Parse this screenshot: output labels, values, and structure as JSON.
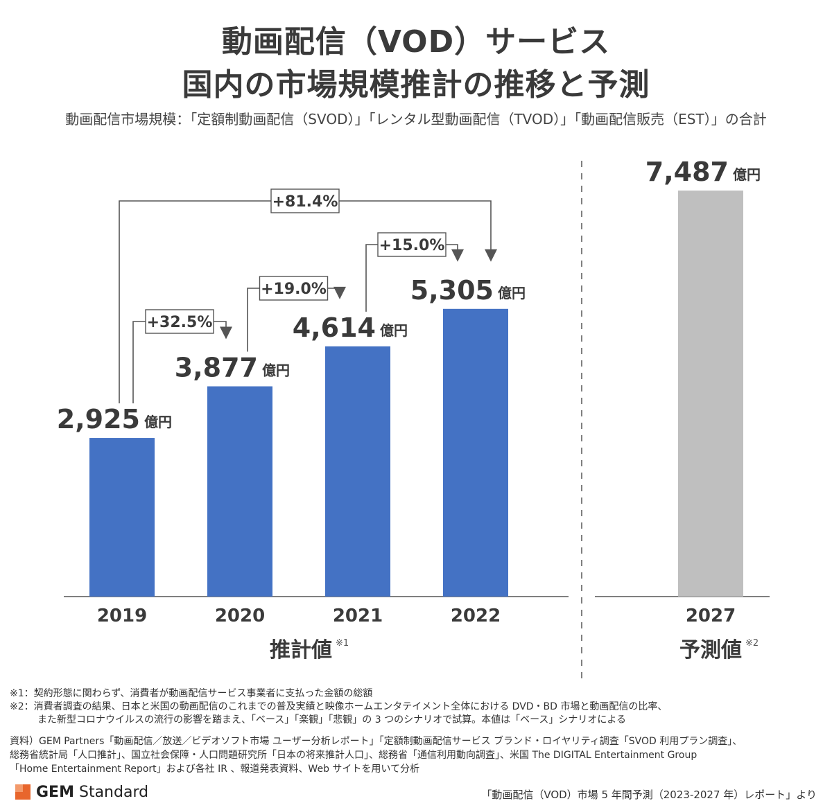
{
  "title_line1": "動画配信（VOD）サービス",
  "title_line2": "国内の市場規模推計の推移と予測",
  "subtitle": "動画配信市場規模：「定額制動画配信（SVOD）」「レンタル型動画配信（TVOD）」「動画配信販売（EST）」の合計",
  "chart_data": {
    "type": "bar",
    "categories": [
      "2019",
      "2020",
      "2021",
      "2022",
      "2027"
    ],
    "values": [
      2925,
      3877,
      4614,
      5305,
      7487
    ],
    "value_labels": [
      "2,925",
      "3,877",
      "4,614",
      "5,305",
      "7,487"
    ],
    "unit": "億円",
    "bar_colors": [
      "#4472c4",
      "#4472c4",
      "#4472c4",
      "#4472c4",
      "#bfbfbf"
    ],
    "growth_labels": [
      {
        "from": "2019",
        "to": "2020",
        "label": "+32.5%"
      },
      {
        "from": "2020",
        "to": "2021",
        "label": "+19.0%"
      },
      {
        "from": "2021",
        "to": "2022",
        "label": "+15.0%"
      },
      {
        "from": "2019",
        "to": "2022",
        "label": "+81.4%"
      }
    ],
    "group_labels": [
      {
        "label": "推計値",
        "note": "※1"
      },
      {
        "label": "予測値",
        "note": "※2"
      }
    ],
    "ylim": [
      0,
      7487
    ]
  },
  "notes": [
    "※1：契約形態に関わらず、消費者が動画配信サービス事業者に支払った金額の総額",
    "※2：消費者調査の結果、日本と米国の動画配信のこれまでの普及実績と映像ホームエンタテイメント全体における DVD・BD 市場と動画配信の比率、",
    "また新型コロナウイルスの流行の影響を踏まえ、「ベース」「楽観」「悲観」の 3 つのシナリオで試算。本値は「ベース」シナリオによる"
  ],
  "sources": [
    "資料）GEM Partners「動画配信／放送／ビデオソフト市場 ユーザー分析レポート」「定額制動画配信サービス ブランド・ロイヤリティ調査「SVOD 利用プラン調査」、",
    "総務省統計局「人口推計」、国立社会保障・人口問題研究所「日本の将来推計人口」、総務省「通信利用動向調査」、米国 The DIGITAL Entertainment Group",
    "「Home Entertainment Report」および各社 IR 、報道発表資料、Web サイトを用いて分析"
  ],
  "logo": {
    "bold": "GEM",
    "rest": " Standard"
  },
  "credit": "「動画配信（VOD）市場 5 年間予測（2023-2027 年）レポート」より"
}
